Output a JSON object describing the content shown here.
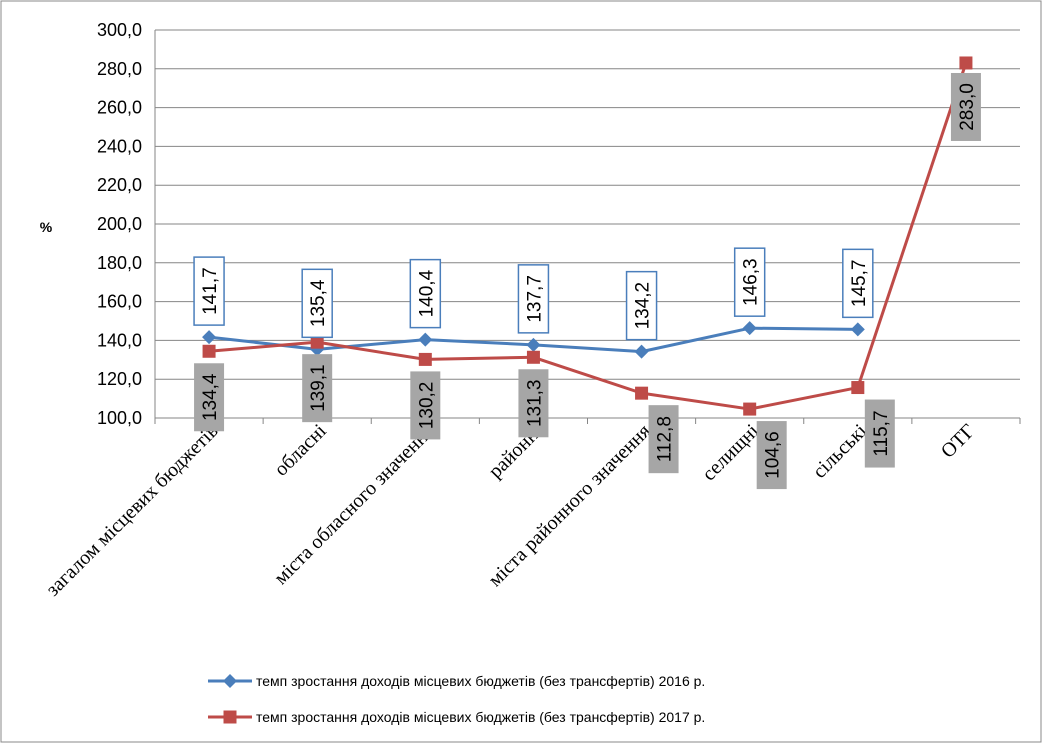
{
  "chart_data": {
    "type": "line",
    "ylabel": "%",
    "xlabel": "",
    "ylim": [
      100,
      300
    ],
    "ytick_labels": [
      "100,0",
      "120,0",
      "140,0",
      "160,0",
      "180,0",
      "200,0",
      "220,0",
      "240,0",
      "260,0",
      "280,0",
      "300,0"
    ],
    "categories": [
      "загалом місцевих бюджетів",
      "обласні",
      "міста обласного значення",
      "районні",
      "міста районного значення",
      "селищні",
      "сільські",
      "ОТГ"
    ],
    "grid": true,
    "legend": "bottom",
    "series": [
      {
        "name": "темп зростання доходів місцевих бюджетів (без трансфертів) 2016 р.",
        "color": "#4a7ebb",
        "marker": "diamond",
        "values": [
          141.7,
          135.4,
          140.4,
          137.7,
          134.2,
          146.3,
          145.7,
          null
        ],
        "labels": [
          "141,7",
          "135,4",
          "140,4",
          "137,7",
          "134,2",
          "146,3",
          "145,7",
          ""
        ]
      },
      {
        "name": "темп зростання доходів місцевих бюджетів (без трансфертів)  2017 р.",
        "color": "#be4b48",
        "marker": "square",
        "values": [
          134.4,
          139.1,
          130.2,
          131.3,
          112.8,
          104.6,
          115.7,
          283.0
        ],
        "labels": [
          "134,4",
          "139,1",
          "130,2",
          "131,3",
          "112,8",
          "104,6",
          "115,7",
          "283,0"
        ]
      }
    ]
  }
}
